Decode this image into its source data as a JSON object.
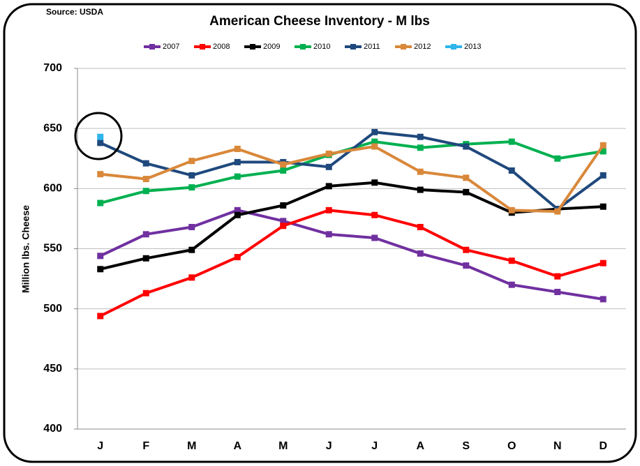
{
  "chart_data": {
    "type": "line",
    "title": "American Cheese Inventory  - M lbs",
    "subtitle": "Source: USDA",
    "y_label": "Million lbs. Cheese",
    "categories": [
      "J",
      "F",
      "M",
      "A",
      "M",
      "J",
      "J",
      "A",
      "S",
      "O",
      "N",
      "D"
    ],
    "series": [
      {
        "name": "2007",
        "color": "#7030a0",
        "values": [
          544,
          562,
          568,
          582,
          573,
          562,
          559,
          546,
          536,
          520,
          514,
          508
        ]
      },
      {
        "name": "2008",
        "color": "#ff0000",
        "values": [
          494,
          513,
          526,
          543,
          569,
          582,
          578,
          568,
          549,
          540,
          527,
          538
        ]
      },
      {
        "name": "2009",
        "color": "#000000",
        "values": [
          533,
          542,
          549,
          578,
          586,
          602,
          605,
          599,
          597,
          580,
          583,
          585
        ]
      },
      {
        "name": "2010",
        "color": "#00b050",
        "values": [
          588,
          598,
          601,
          610,
          615,
          628,
          639,
          634,
          637,
          639,
          625,
          631
        ]
      },
      {
        "name": "2011",
        "color": "#1f497d",
        "values": [
          638,
          621,
          611,
          622,
          622,
          618,
          647,
          643,
          635,
          615,
          583,
          611
        ]
      },
      {
        "name": "2012",
        "color": "#d9883a",
        "values": [
          612,
          608,
          623,
          633,
          620,
          629,
          635,
          614,
          609,
          582,
          581,
          636
        ]
      },
      {
        "name": "2013",
        "color": "#2fb5ea",
        "values": [
          643,
          null,
          null,
          null,
          null,
          null,
          null,
          null,
          null,
          null,
          null,
          null
        ]
      }
    ],
    "ylim": [
      400,
      700
    ],
    "yticks": [
      400,
      450,
      500,
      550,
      600,
      650,
      700
    ],
    "grid": true
  }
}
